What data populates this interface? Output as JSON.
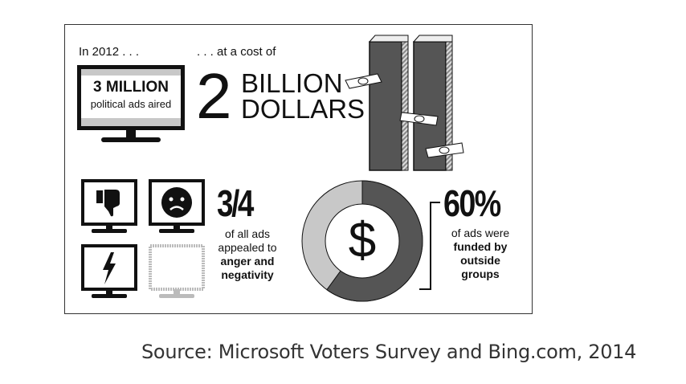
{
  "intro": "In 2012 . . .",
  "cost_intro": ". . . at a cost of",
  "ads_count": "3 MILLION",
  "ads_caption": "political ads aired",
  "cost_number": "2",
  "cost_line1": "BILLION",
  "cost_line2": "DOLLARS",
  "fraction": "3/4",
  "fraction_caption": [
    "of all ads",
    "appealed to"
  ],
  "fraction_bold": [
    "anger and",
    "negativity"
  ],
  "percent": "60%",
  "percent_caption": "of ads were",
  "percent_bold": [
    "funded by",
    "outside",
    "groups"
  ],
  "donut": {
    "value_percent": 60,
    "center_symbol": "$",
    "colors": {
      "filled": "#555555",
      "rest": "#c8c8c8"
    }
  },
  "icons": [
    "thumbs-down-icon",
    "angry-face-icon",
    "lightning-icon",
    "empty-monitor-icon",
    "money-tower-icon",
    "dollar-bill-icon"
  ],
  "source": "Source: Microsoft Voters Survey and Bing.com, 2014"
}
